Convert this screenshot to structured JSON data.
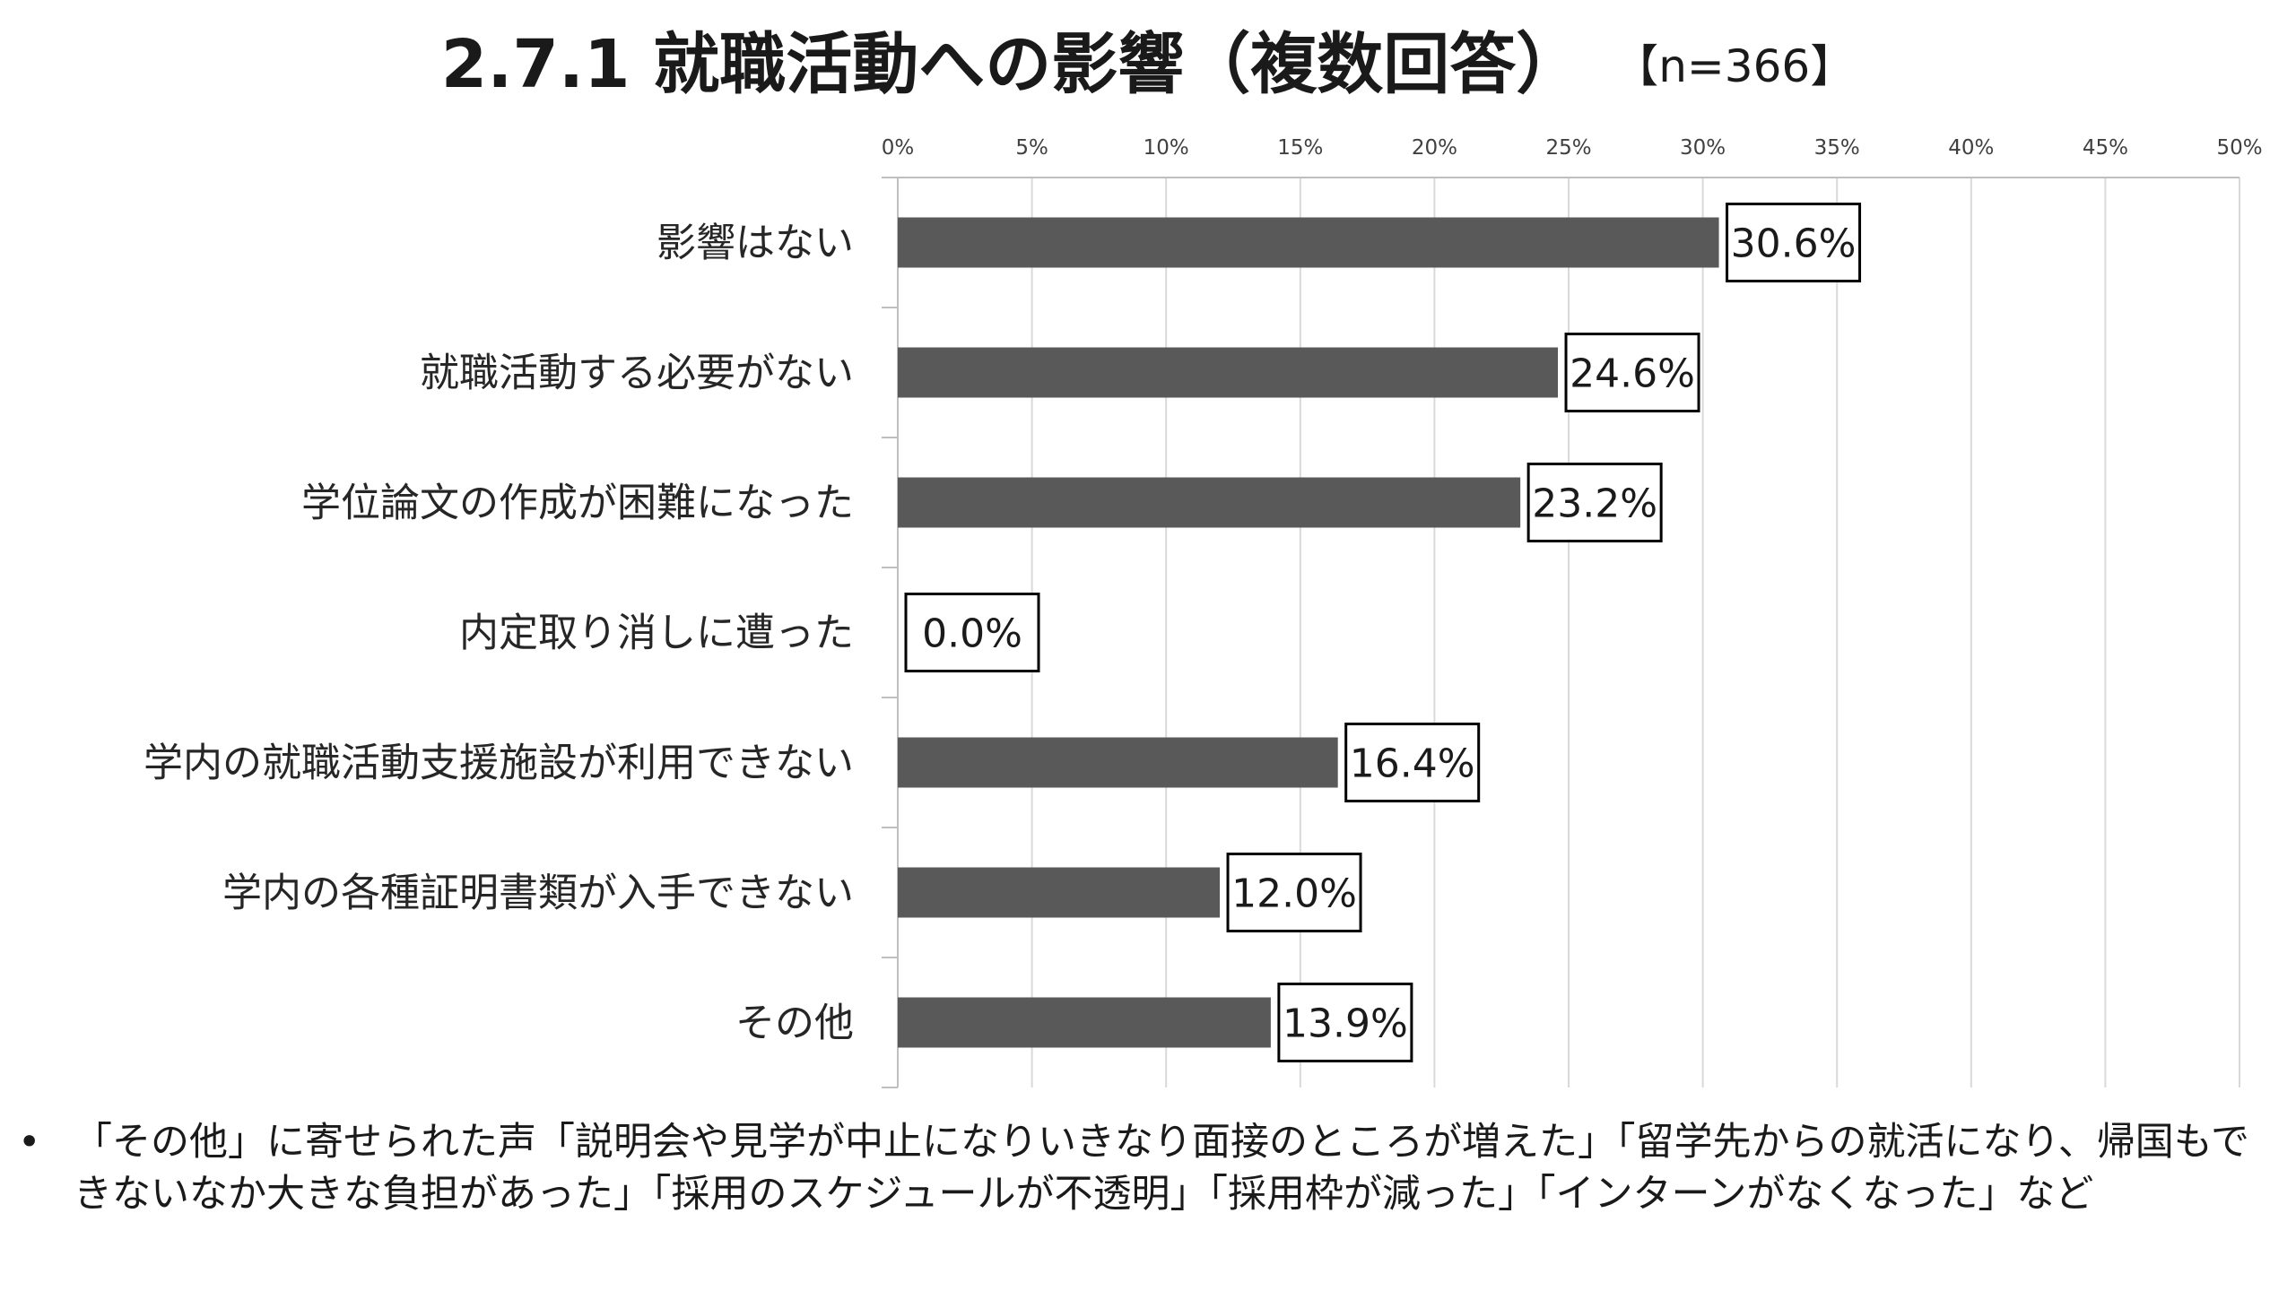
{
  "title": "2.7.1 就職活動への影響（複数回答）",
  "sample_size": "【n=366】",
  "chart_data": {
    "type": "bar",
    "orientation": "horizontal",
    "categories": [
      "影響はない",
      "就職活動する必要がない",
      "学位論文の作成が困難になった",
      "内定取り消しに遭った",
      "学内の就職活動支援施設が利用できない",
      "学内の各種証明書類が入手できない",
      "その他"
    ],
    "values": [
      30.6,
      24.6,
      23.2,
      0.0,
      16.4,
      12.0,
      13.9
    ],
    "data_labels": [
      "30.6%",
      "24.6%",
      "23.2%",
      "0.0%",
      "16.4%",
      "12.0%",
      "13.9%"
    ],
    "x_ticks": [
      "0%",
      "5%",
      "10%",
      "15%",
      "20%",
      "25%",
      "30%",
      "35%",
      "40%",
      "45%",
      "50%"
    ],
    "xlim": [
      0,
      50
    ],
    "grid": true,
    "axis_position": "top",
    "bar_color": "#595959"
  },
  "note": {
    "bullet": "•",
    "text": "「その他」に寄せられた声「説明会や見学が中止になりいきなり面接のところが増えた」「留学先からの就活になり、帰国もできないなか大きな負担があった」「採用のスケジュールが不透明」「採用枠が減った」「インターンがなくなった」など"
  }
}
